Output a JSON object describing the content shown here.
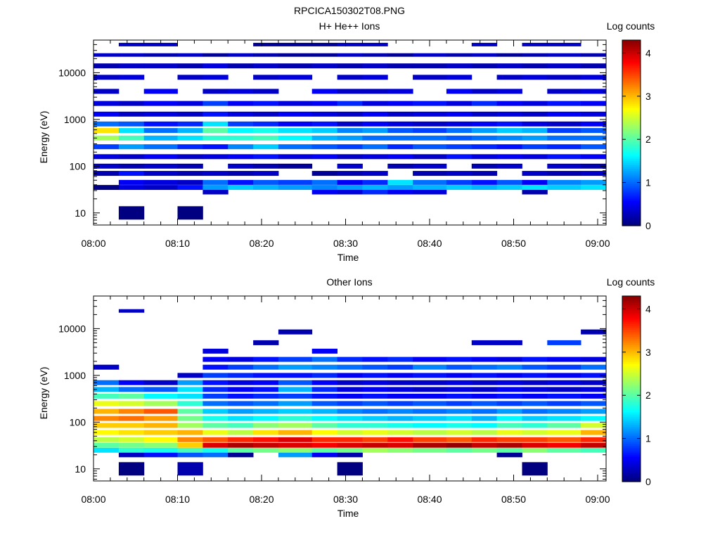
{
  "figure_title": "RPCICA150302T08.PNG",
  "chart_data": [
    {
      "type": "heatmap",
      "title": "H+ He++ Ions",
      "xlabel": "Time",
      "ylabel": "Energy (eV)",
      "colorbar_label": "Log counts",
      "y_scale": "log",
      "ylim": [
        5.5,
        50000
      ],
      "x_range": [
        "08:00",
        "09:01"
      ],
      "x_ticks": [
        "08:00",
        "08:10",
        "08:20",
        "08:30",
        "08:40",
        "08:50",
        "09:00"
      ],
      "y_ticks": [
        "10",
        "100",
        "1000",
        "10000"
      ],
      "colorbar_range": [
        0,
        4.3
      ],
      "colorbar_ticks": [
        "0",
        "1",
        "2",
        "3",
        "4"
      ],
      "colormap": "jet",
      "columns": [
        "08:00",
        "08:03",
        "08:06",
        "08:10",
        "08:13",
        "08:16",
        "08:19",
        "08:22",
        "08:26",
        "08:29",
        "08:32",
        "08:35",
        "08:38",
        "08:42",
        "08:45",
        "08:48",
        "08:51",
        "08:54",
        "08:58"
      ],
      "bins": [
        {
          "e": 10,
          "v": [
            null,
            0,
            null,
            0,
            null,
            null,
            null,
            null,
            null,
            null,
            null,
            null,
            null,
            null,
            null,
            null,
            null,
            null,
            null
          ]
        },
        {
          "e": 28,
          "v": [
            null,
            null,
            null,
            null,
            0.3,
            null,
            null,
            null,
            0.5,
            0.4,
            0.7,
            0.5,
            0.4,
            null,
            null,
            null,
            0.2,
            null,
            null
          ]
        },
        {
          "e": 35,
          "v": [
            0,
            0.4,
            0.3,
            0.6,
            1.2,
            1.4,
            1.3,
            1.2,
            1.1,
            1.2,
            1.3,
            1.2,
            1.3,
            1.4,
            1.3,
            1.4,
            1.5,
            1.4,
            1.5
          ]
        },
        {
          "e": 45,
          "v": [
            null,
            0.5,
            0.4,
            0.3,
            1.0,
            0.6,
            0.9,
            0.8,
            1.0,
            0.5,
            0.7,
            1.5,
            1.0,
            0.8,
            0.6,
            0.9,
            0.5,
            1.1,
            1.2
          ]
        },
        {
          "e": 70,
          "v": [
            0.2,
            0.6,
            0.3,
            0.2,
            0.3,
            0.2,
            0.3,
            null,
            0.1,
            0.2,
            0.3,
            null,
            0.2,
            0.3,
            0.2,
            null,
            0.3,
            0.2,
            0.3
          ]
        },
        {
          "e": 100,
          "v": [
            0.3,
            0.2,
            0.3,
            0.2,
            null,
            0.3,
            0.2,
            0.1,
            null,
            0.3,
            null,
            0.2,
            0.3,
            null,
            0.2,
            0.3,
            null,
            0.3,
            0.2
          ]
        },
        {
          "e": 160,
          "v": [
            0.4,
            0.3,
            0.5,
            0.3,
            0.4,
            0.5,
            0.6,
            0.4,
            0.5,
            0.3,
            0.4,
            0.5,
            0.3,
            0.6,
            0.4,
            0.5,
            0.4,
            0.6,
            0.5
          ]
        },
        {
          "e": 260,
          "v": [
            0.8,
            1.2,
            1.0,
            0.7,
            0.6,
            1.1,
            1.4,
            1.0,
            0.9,
            0.8,
            1.0,
            0.7,
            0.9,
            0.8,
            0.7,
            0.6,
            0.8,
            0.7,
            0.9
          ]
        },
        {
          "e": 400,
          "v": [
            2.3,
            1.9,
            1.3,
            1.5,
            1.8,
            1.8,
            1.9,
            1.6,
            1.3,
            1.2,
            1.0,
            1.0,
            1.0,
            0.9,
            1.0,
            1.1,
            1.2,
            1.0,
            1.0
          ]
        },
        {
          "e": 580,
          "v": [
            2.8,
            1.5,
            1.0,
            1.3,
            2.0,
            1.6,
            1.7,
            1.5,
            1.4,
            1.1,
            1.2,
            0.9,
            0.8,
            1.0,
            1.2,
            1.4,
            1.3,
            0.8,
            0.9
          ]
        },
        {
          "e": 800,
          "v": [
            1.0,
            0.9,
            0.6,
            0.7,
            1.5,
            0.8,
            0.7,
            0.5,
            0.6,
            0.3,
            0.5,
            0.4,
            0.3,
            0.4,
            0.5,
            0.6,
            0.4,
            0.3,
            0.5
          ]
        },
        {
          "e": 1300,
          "v": [
            0.5,
            0.3,
            0.4,
            0.3,
            0.6,
            0.4,
            0.3,
            0.5,
            0.4,
            0.3,
            0.5,
            0.3,
            0.4,
            0.5,
            0.3,
            0.4,
            0.3,
            0.5,
            0.4
          ]
        },
        {
          "e": 2200,
          "v": [
            0.4,
            0.3,
            0.5,
            0.4,
            0.8,
            0.5,
            0.6,
            0.4,
            0.5,
            0.7,
            0.4,
            0.5,
            0.6,
            0.4,
            0.7,
            0.5,
            0.4,
            0.6,
            0.5
          ]
        },
        {
          "e": 4000,
          "v": [
            0.3,
            null,
            0.5,
            null,
            0.3,
            0.4,
            0.3,
            null,
            0.5,
            0.3,
            0.3,
            0.4,
            null,
            0.5,
            0.3,
            0.4,
            null,
            0.3,
            0.4
          ]
        },
        {
          "e": 8000,
          "v": [
            0.3,
            0.4,
            null,
            0.3,
            0.4,
            null,
            0.3,
            0.4,
            null,
            0.3,
            0.4,
            null,
            0.3,
            0.4,
            null,
            0.3,
            0.4,
            0.3,
            0.4
          ]
        },
        {
          "e": 14000,
          "v": [
            0.2,
            0.3,
            0.3,
            0.2,
            0.4,
            0.2,
            0.3,
            0.2,
            0.3,
            0.2,
            0.3,
            0.2,
            0.2,
            0.3,
            0.2,
            0.3,
            0.2,
            0.3,
            0.2
          ]
        },
        {
          "e": 24000,
          "v": [
            0.3,
            0.3,
            0.2,
            0.3,
            0.1,
            0.3,
            0.2,
            0.1,
            0.1,
            0.3,
            0.2,
            0.1,
            0.3,
            0.2,
            0.3,
            0.1,
            0.2,
            0.3,
            0.2
          ]
        },
        {
          "e": 40000,
          "v": [
            null,
            0.3,
            0.3,
            null,
            null,
            null,
            0.1,
            0.1,
            0.1,
            0.3,
            0.3,
            null,
            null,
            null,
            0.3,
            null,
            0.3,
            0.3,
            null
          ]
        }
      ]
    },
    {
      "type": "heatmap",
      "title": "Other Ions",
      "xlabel": "Time",
      "ylabel": "Energy (eV)",
      "colorbar_label": "Log counts",
      "y_scale": "log",
      "ylim": [
        5.5,
        50000
      ],
      "x_range": [
        "08:00",
        "09:01"
      ],
      "x_ticks": [
        "08:00",
        "08:10",
        "08:20",
        "08:30",
        "08:40",
        "08:50",
        "09:00"
      ],
      "y_ticks": [
        "10",
        "100",
        "1000",
        "10000"
      ],
      "colorbar_range": [
        0,
        4.3
      ],
      "colorbar_ticks": [
        "0",
        "1",
        "2",
        "3",
        "4"
      ],
      "colormap": "jet",
      "columns": [
        "08:00",
        "08:03",
        "08:06",
        "08:10",
        "08:13",
        "08:16",
        "08:19",
        "08:22",
        "08:26",
        "08:29",
        "08:32",
        "08:35",
        "08:38",
        "08:42",
        "08:45",
        "08:48",
        "08:51",
        "08:54",
        "08:58"
      ],
      "bins": [
        {
          "e": 10,
          "v": [
            null,
            0,
            null,
            0.2,
            null,
            null,
            null,
            null,
            null,
            0,
            null,
            null,
            null,
            null,
            null,
            null,
            0,
            null,
            null
          ]
        },
        {
          "e": 20,
          "v": [
            null,
            0.3,
            0.6,
            0.9,
            1.0,
            0.1,
            null,
            1.2,
            0.5,
            0.2,
            null,
            null,
            null,
            null,
            null,
            0.1,
            null,
            null,
            null
          ]
        },
        {
          "e": 25,
          "v": [
            1.5,
            1.8,
            1.7,
            1.9,
            1.7,
            2.0,
            2.1,
            2.2,
            2.0,
            2.1,
            2.3,
            2.2,
            2.1,
            2.0,
            2.1,
            2.0,
            2.2,
            2.0,
            1.9
          ]
        },
        {
          "e": 32,
          "v": [
            2.0,
            2.1,
            2.2,
            2.9,
            3.9,
            4.1,
            4.0,
            3.9,
            3.8,
            3.9,
            4.0,
            3.9,
            4.1,
            4.2,
            4.0,
            4.1,
            3.9,
            3.8,
            4.0
          ]
        },
        {
          "e": 42,
          "v": [
            2.4,
            2.5,
            2.7,
            3.2,
            3.4,
            3.6,
            3.7,
            3.9,
            3.6,
            3.6,
            3.5,
            3.7,
            3.5,
            3.4,
            3.6,
            3.5,
            3.5,
            3.4,
            3.6
          ]
        },
        {
          "e": 60,
          "v": [
            2.7,
            2.8,
            2.9,
            3.0,
            2.6,
            2.4,
            2.8,
            3.0,
            2.7,
            2.5,
            2.6,
            2.5,
            2.4,
            2.5,
            2.4,
            2.6,
            2.5,
            2.6,
            3.0
          ]
        },
        {
          "e": 85,
          "v": [
            2.9,
            2.9,
            3.0,
            2.3,
            2.0,
            1.9,
            2.2,
            2.3,
            2.0,
            1.8,
            1.8,
            1.7,
            1.6,
            1.7,
            1.6,
            1.9,
            1.8,
            2.0,
            2.5
          ]
        },
        {
          "e": 120,
          "v": [
            3.2,
            3.3,
            3.1,
            2.1,
            1.7,
            1.5,
            1.6,
            1.8,
            1.6,
            1.5,
            1.4,
            1.3,
            1.4,
            1.5,
            1.3,
            1.6,
            1.4,
            1.5,
            1.6
          ]
        },
        {
          "e": 170,
          "v": [
            3.0,
            3.2,
            3.4,
            2.0,
            1.4,
            1.2,
            1.3,
            1.4,
            1.3,
            1.1,
            1.0,
            1.1,
            1.0,
            1.1,
            1.0,
            1.2,
            1.0,
            1.1,
            1.2
          ]
        },
        {
          "e": 250,
          "v": [
            2.6,
            2.5,
            2.3,
            1.8,
            1.0,
            0.9,
            1.0,
            1.2,
            0.9,
            0.8,
            0.9,
            0.8,
            0.9,
            0.8,
            0.9,
            0.8,
            0.9,
            0.8,
            0.9
          ]
        },
        {
          "e": 360,
          "v": [
            1.9,
            2.0,
            1.6,
            1.5,
            0.8,
            0.6,
            0.7,
            0.8,
            0.6,
            0.5,
            0.6,
            0.5,
            0.5,
            0.6,
            0.5,
            0.6,
            0.5,
            0.6,
            0.5
          ]
        },
        {
          "e": 500,
          "v": [
            1.3,
            1.0,
            0.9,
            1.5,
            0.7,
            0.5,
            0.6,
            1.3,
            0.7,
            0.4,
            0.5,
            0.4,
            0.3,
            0.4,
            0.3,
            0.5,
            0.4,
            0.3,
            0.4
          ]
        },
        {
          "e": 700,
          "v": [
            1.0,
            0.5,
            0.3,
            1.2,
            0.6,
            0.4,
            0.5,
            0.9,
            0.5,
            0.3,
            0.4,
            0.3,
            0.3,
            0.4,
            0.3,
            0.4,
            0.3,
            0.4,
            0.3
          ]
        },
        {
          "e": 1000,
          "v": [
            null,
            null,
            null,
            0.3,
            0.8,
            0.7,
            0.6,
            0.6,
            0.7,
            0.5,
            0.6,
            0.5,
            0.6,
            0.5,
            0.6,
            0.5,
            0.6,
            0.5,
            0.6
          ]
        },
        {
          "e": 1500,
          "v": [
            0.3,
            null,
            null,
            null,
            0.6,
            0.8,
            1.0,
            1.2,
            1.1,
            1.0,
            0.9,
            0.8,
            1.1,
            0.9,
            1.0,
            1.1,
            0.9,
            0.8,
            1.0
          ]
        },
        {
          "e": 2200,
          "v": [
            null,
            null,
            null,
            null,
            0.5,
            0.4,
            0.6,
            0.8,
            1.0,
            0.7,
            0.6,
            0.7,
            0.5,
            0.6,
            0.5,
            0.4,
            0.6,
            0.5,
            0.4
          ]
        },
        {
          "e": 3300,
          "v": [
            null,
            null,
            null,
            null,
            0.4,
            null,
            null,
            null,
            0.5,
            null,
            null,
            null,
            null,
            null,
            null,
            null,
            null,
            null,
            null
          ]
        },
        {
          "e": 5000,
          "v": [
            null,
            null,
            null,
            null,
            null,
            null,
            0.2,
            null,
            null,
            null,
            null,
            null,
            null,
            null,
            0.3,
            0.3,
            null,
            0.8,
            null
          ]
        },
        {
          "e": 8500,
          "v": [
            null,
            null,
            null,
            null,
            null,
            null,
            null,
            0.2,
            null,
            null,
            null,
            null,
            null,
            null,
            null,
            null,
            null,
            null,
            0.2
          ]
        },
        {
          "e": 24000,
          "v": [
            null,
            0.3,
            null,
            null,
            null,
            null,
            null,
            null,
            null,
            null,
            null,
            null,
            null,
            null,
            null,
            null,
            null,
            null,
            null
          ]
        }
      ]
    }
  ]
}
